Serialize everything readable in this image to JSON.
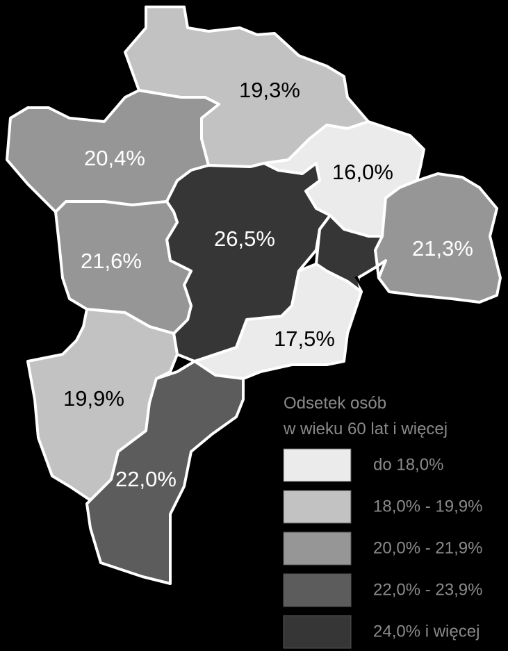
{
  "map": {
    "regions": [
      {
        "id": "north",
        "value": "19,3%",
        "class": 1
      },
      {
        "id": "northwest",
        "value": "20,4%",
        "class": 2
      },
      {
        "id": "northeast",
        "value": "16,0%",
        "class": 0
      },
      {
        "id": "east",
        "value": "21,3%",
        "class": 2
      },
      {
        "id": "center",
        "value": "26,5%",
        "class": 4
      },
      {
        "id": "west",
        "value": "21,6%",
        "class": 2
      },
      {
        "id": "south-center",
        "value": "17,5%",
        "class": 0
      },
      {
        "id": "southwest",
        "value": "19,9%",
        "class": 1
      },
      {
        "id": "south",
        "value": "22,0%",
        "class": 3
      },
      {
        "id": "small-east",
        "value": "",
        "class": 4
      }
    ]
  },
  "legend": {
    "title_line1": "Odsetek osób",
    "title_line2": "w wieku 60 lat i więcej",
    "items": [
      {
        "label": "do 18,0%",
        "color": "#ebebeb"
      },
      {
        "label": "18,0% - 19,9%",
        "color": "#c2c2c2"
      },
      {
        "label": "20,0% - 21,9%",
        "color": "#969696"
      },
      {
        "label": "22,0% - 23,9%",
        "color": "#5c5c5c"
      },
      {
        "label": "24,0% i więcej",
        "color": "#363636"
      }
    ]
  },
  "colors": {
    "background": "#000000",
    "border": "#ffffff",
    "label_dark": "#000000",
    "label_light": "#ffffff"
  }
}
